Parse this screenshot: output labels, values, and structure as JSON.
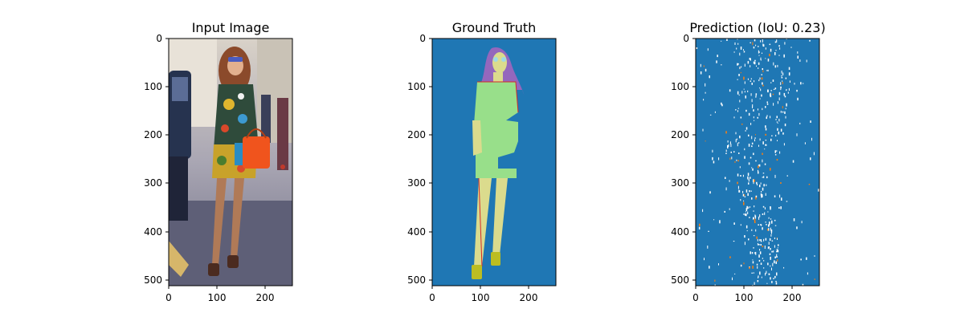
{
  "chart_data": [
    {
      "type": "image",
      "title": "Input Image",
      "x_ticks": [
        0,
        100,
        200
      ],
      "y_ticks": [
        0,
        100,
        200,
        300,
        400,
        500
      ],
      "xlim": [
        0,
        256
      ],
      "ylim": [
        512,
        0
      ]
    },
    {
      "type": "image",
      "title": "Ground Truth",
      "x_ticks": [
        0,
        100,
        200
      ],
      "y_ticks": [
        0,
        100,
        200,
        300,
        400,
        500
      ],
      "xlim": [
        0,
        256
      ],
      "ylim": [
        512,
        0
      ],
      "colors": {
        "background": "#1f77b4",
        "hair": "#9467bd",
        "dress": "#98df8a",
        "skin": "#dbdb8d",
        "shoes": "#bcbd22",
        "edges": "#d62728",
        "glasses": "#9edae5"
      }
    },
    {
      "type": "image",
      "title": "Prediction (IoU: 0.23)",
      "iou": 0.23,
      "x_ticks": [
        0,
        100,
        200
      ],
      "y_ticks": [
        0,
        100,
        200,
        300,
        400,
        500
      ],
      "xlim": [
        0,
        256
      ],
      "ylim": [
        512,
        0
      ],
      "colors": {
        "background": "#1f77b4",
        "speckle": "#ffffff",
        "accent": "#ff7f0e"
      }
    }
  ]
}
